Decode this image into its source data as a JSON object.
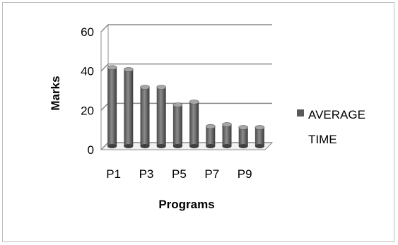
{
  "chart_data": {
    "type": "bar",
    "style": "3d-cylinder",
    "categories": [
      "P1",
      "P2",
      "P3",
      "P4",
      "P5",
      "P6",
      "P7",
      "P8",
      "P9",
      "P10"
    ],
    "tick_labels": [
      "P1",
      "",
      "P3",
      "",
      "P5",
      "",
      "P7",
      "",
      "P9",
      ""
    ],
    "series": [
      {
        "name": "AVERAGE TIME",
        "values": [
          40,
          39,
          30,
          30,
          21,
          22.5,
          10,
          11,
          9.5,
          9.5
        ],
        "color": "#595959"
      }
    ],
    "ylabel": "Marks",
    "xlabel": "Programs",
    "ylim": [
      0,
      60
    ],
    "yticks": [
      0,
      20,
      40,
      60
    ],
    "grid": true,
    "legend_position": "right",
    "legend_lines": [
      "AVERAGE",
      "TIME"
    ]
  }
}
